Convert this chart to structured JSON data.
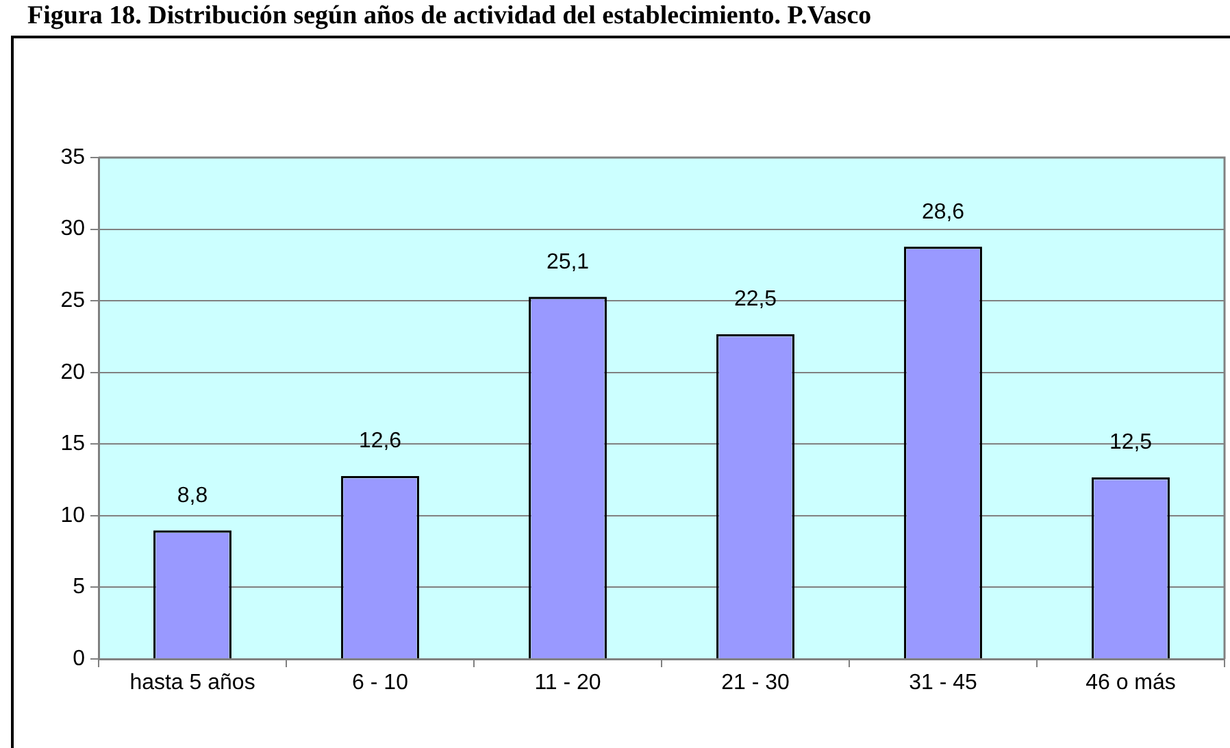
{
  "chart_data": {
    "type": "bar",
    "title": "Figura 18. Distribución según años de actividad del establecimiento. P.Vasco",
    "categories": [
      "hasta 5 años",
      "6 - 10",
      "11 - 20",
      "21 - 30",
      "31 - 45",
      "46 o más"
    ],
    "values": [
      8.8,
      12.6,
      25.1,
      22.5,
      28.6,
      12.5
    ],
    "value_labels": [
      "8,8",
      "12,6",
      "25,1",
      "22,5",
      "28,6",
      "12,5"
    ],
    "color": "#9999ff",
    "ylim": [
      0,
      35
    ],
    "yticks": [
      0,
      5,
      10,
      15,
      20,
      25,
      30,
      35
    ],
    "grid": "y"
  }
}
